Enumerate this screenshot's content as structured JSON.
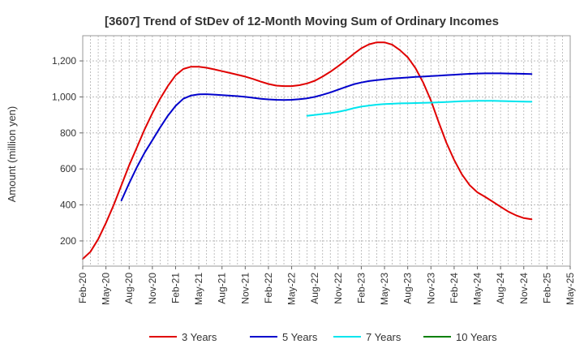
{
  "chart_data": {
    "type": "line",
    "title": "[3607]  Trend of StDev of 12-Month Moving Sum of Ordinary Incomes",
    "xlabel": "",
    "ylabel": "Amount (million yen)",
    "ylim": [
      60,
      1340
    ],
    "yticks": [
      200,
      400,
      600,
      800,
      1000,
      1200
    ],
    "ytick_labels": [
      "200",
      "400",
      "600",
      "800",
      "1,000",
      "1,200"
    ],
    "x_tick_labels": [
      "Feb-20",
      "May-20",
      "Aug-20",
      "Nov-20",
      "Feb-21",
      "May-21",
      "Aug-21",
      "Nov-21",
      "Feb-22",
      "May-22",
      "Aug-22",
      "Nov-22",
      "Feb-23",
      "May-23",
      "Aug-23",
      "Nov-23",
      "Feb-24",
      "May-24",
      "Aug-24",
      "Nov-24",
      "Feb-25",
      "May-25"
    ],
    "x_range_months": [
      0,
      63
    ],
    "grid": true,
    "legend_position": "bottom",
    "series": [
      {
        "name": "3 Years",
        "color": "#e00000",
        "points": [
          [
            "2020-02",
            100
          ],
          [
            "2020-03",
            140
          ],
          [
            "2020-04",
            210
          ],
          [
            "2020-05",
            300
          ],
          [
            "2020-06",
            400
          ],
          [
            "2020-07",
            510
          ],
          [
            "2020-08",
            620
          ],
          [
            "2020-09",
            720
          ],
          [
            "2020-10",
            820
          ],
          [
            "2020-11",
            910
          ],
          [
            "2020-12",
            990
          ],
          [
            "2021-01",
            1060
          ],
          [
            "2021-02",
            1120
          ],
          [
            "2021-03",
            1155
          ],
          [
            "2021-04",
            1168
          ],
          [
            "2021-05",
            1168
          ],
          [
            "2021-06",
            1162
          ],
          [
            "2021-07",
            1153
          ],
          [
            "2021-08",
            1143
          ],
          [
            "2021-09",
            1133
          ],
          [
            "2021-10",
            1123
          ],
          [
            "2021-11",
            1113
          ],
          [
            "2021-12",
            1100
          ],
          [
            "2022-01",
            1085
          ],
          [
            "2022-02",
            1072
          ],
          [
            "2022-03",
            1063
          ],
          [
            "2022-04",
            1060
          ],
          [
            "2022-05",
            1060
          ],
          [
            "2022-06",
            1065
          ],
          [
            "2022-07",
            1075
          ],
          [
            "2022-08",
            1090
          ],
          [
            "2022-09",
            1113
          ],
          [
            "2022-10",
            1140
          ],
          [
            "2022-11",
            1170
          ],
          [
            "2022-12",
            1203
          ],
          [
            "2023-01",
            1238
          ],
          [
            "2023-02",
            1270
          ],
          [
            "2023-03",
            1292
          ],
          [
            "2023-04",
            1303
          ],
          [
            "2023-05",
            1303
          ],
          [
            "2023-06",
            1290
          ],
          [
            "2023-07",
            1260
          ],
          [
            "2023-08",
            1220
          ],
          [
            "2023-09",
            1160
          ],
          [
            "2023-10",
            1080
          ],
          [
            "2023-11",
            980
          ],
          [
            "2023-12",
            860
          ],
          [
            "2024-01",
            745
          ],
          [
            "2024-02",
            650
          ],
          [
            "2024-03",
            570
          ],
          [
            "2024-04",
            510
          ],
          [
            "2024-05",
            470
          ],
          [
            "2024-06",
            445
          ],
          [
            "2024-07",
            418
          ],
          [
            "2024-08",
            390
          ],
          [
            "2024-09",
            363
          ],
          [
            "2024-10",
            342
          ],
          [
            "2024-11",
            327
          ],
          [
            "2024-12",
            320
          ]
        ]
      },
      {
        "name": "5 Years",
        "color": "#0000cc",
        "points": [
          [
            "2020-07",
            425
          ],
          [
            "2020-08",
            520
          ],
          [
            "2020-09",
            610
          ],
          [
            "2020-10",
            690
          ],
          [
            "2020-11",
            760
          ],
          [
            "2020-12",
            830
          ],
          [
            "2021-01",
            895
          ],
          [
            "2021-02",
            950
          ],
          [
            "2021-03",
            990
          ],
          [
            "2021-04",
            1008
          ],
          [
            "2021-05",
            1014
          ],
          [
            "2021-06",
            1015
          ],
          [
            "2021-07",
            1013
          ],
          [
            "2021-08",
            1010
          ],
          [
            "2021-09",
            1007
          ],
          [
            "2021-10",
            1004
          ],
          [
            "2021-11",
            1000
          ],
          [
            "2021-12",
            995
          ],
          [
            "2022-01",
            990
          ],
          [
            "2022-02",
            986
          ],
          [
            "2022-03",
            984
          ],
          [
            "2022-04",
            983
          ],
          [
            "2022-05",
            984
          ],
          [
            "2022-06",
            987
          ],
          [
            "2022-07",
            992
          ],
          [
            "2022-08",
            1000
          ],
          [
            "2022-09",
            1012
          ],
          [
            "2022-10",
            1025
          ],
          [
            "2022-11",
            1040
          ],
          [
            "2022-12",
            1055
          ],
          [
            "2023-01",
            1070
          ],
          [
            "2023-02",
            1080
          ],
          [
            "2023-03",
            1088
          ],
          [
            "2023-04",
            1093
          ],
          [
            "2023-05",
            1098
          ],
          [
            "2023-06",
            1102
          ],
          [
            "2023-07",
            1105
          ],
          [
            "2023-08",
            1108
          ],
          [
            "2023-09",
            1111
          ],
          [
            "2023-10",
            1113
          ],
          [
            "2023-11",
            1116
          ],
          [
            "2023-12",
            1118
          ],
          [
            "2024-01",
            1121
          ],
          [
            "2024-02",
            1123
          ],
          [
            "2024-03",
            1126
          ],
          [
            "2024-04",
            1128
          ],
          [
            "2024-05",
            1130
          ],
          [
            "2024-06",
            1131
          ],
          [
            "2024-07",
            1131
          ],
          [
            "2024-08",
            1131
          ],
          [
            "2024-09",
            1130
          ],
          [
            "2024-10",
            1129
          ],
          [
            "2024-11",
            1128
          ],
          [
            "2024-12",
            1127
          ]
        ]
      },
      {
        "name": "7 Years",
        "color": "#00e5ee",
        "points": [
          [
            "2022-07",
            895
          ],
          [
            "2022-08",
            900
          ],
          [
            "2022-09",
            905
          ],
          [
            "2022-10",
            910
          ],
          [
            "2022-11",
            917
          ],
          [
            "2022-12",
            926
          ],
          [
            "2023-01",
            937
          ],
          [
            "2023-02",
            946
          ],
          [
            "2023-03",
            952
          ],
          [
            "2023-04",
            957
          ],
          [
            "2023-05",
            960
          ],
          [
            "2023-06",
            962
          ],
          [
            "2023-07",
            964
          ],
          [
            "2023-08",
            965
          ],
          [
            "2023-09",
            966
          ],
          [
            "2023-10",
            967
          ],
          [
            "2023-11",
            968
          ],
          [
            "2023-12",
            970
          ],
          [
            "2024-01",
            972
          ],
          [
            "2024-02",
            974
          ],
          [
            "2024-03",
            976
          ],
          [
            "2024-04",
            977
          ],
          [
            "2024-05",
            978
          ],
          [
            "2024-06",
            978
          ],
          [
            "2024-07",
            978
          ],
          [
            "2024-08",
            977
          ],
          [
            "2024-09",
            976
          ],
          [
            "2024-10",
            975
          ],
          [
            "2024-11",
            974
          ],
          [
            "2024-12",
            973
          ]
        ]
      },
      {
        "name": "10 Years",
        "color": "#008000",
        "points": []
      }
    ]
  }
}
